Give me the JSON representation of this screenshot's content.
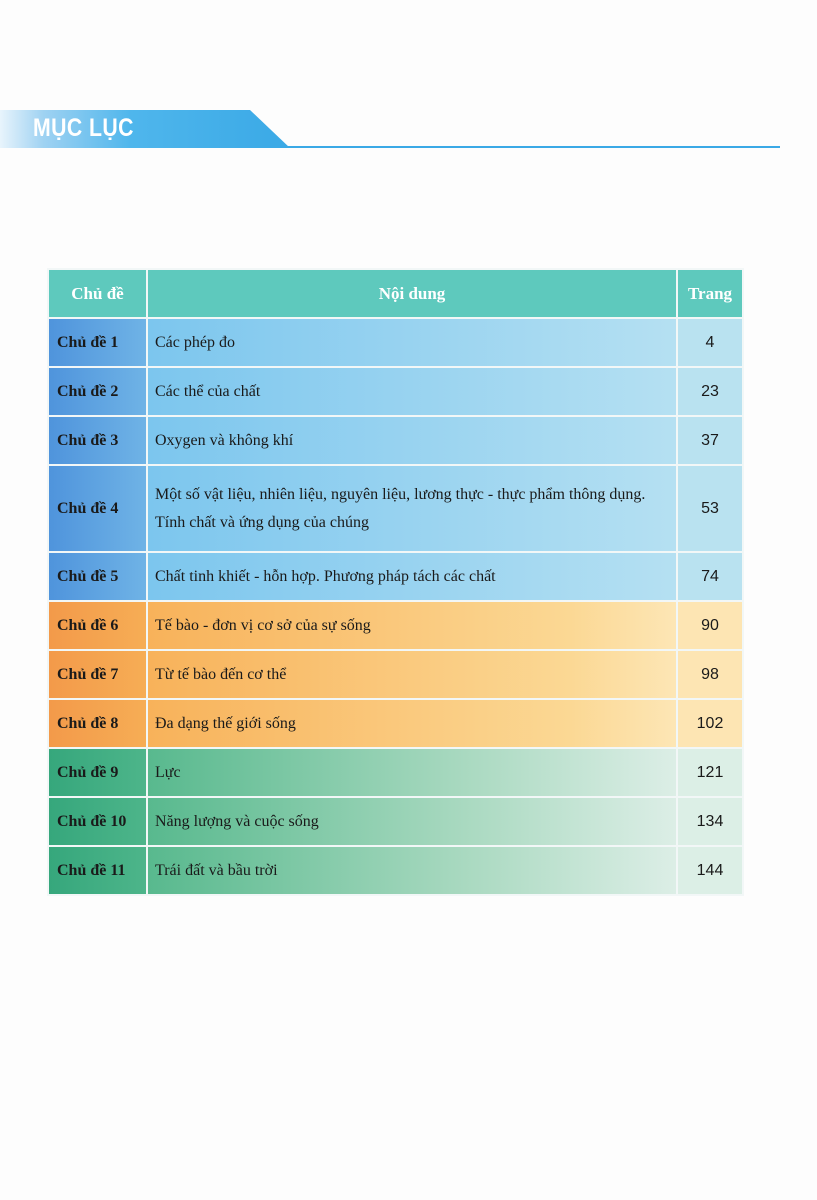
{
  "title": "MỤC LỤC",
  "headers": {
    "topic": "Chủ đề",
    "content": "Nội dung",
    "page": "Trang"
  },
  "colors": {
    "header": "#5ec9bd",
    "blue": "#4f94dc",
    "orange": "#f39a4a",
    "green": "#36a77c",
    "banner": "#3aa9e6"
  },
  "rows": [
    {
      "topic": "Chủ đề 1",
      "content": "Các phép đo",
      "page": "4",
      "group": "blue"
    },
    {
      "topic": "Chủ đề 2",
      "content": "Các thể của chất",
      "page": "23",
      "group": "blue"
    },
    {
      "topic": "Chủ đề 3",
      "content": "Oxygen và không khí",
      "page": "37",
      "group": "blue"
    },
    {
      "topic": "Chủ đề 4",
      "content": "Một số vật liệu, nhiên liệu, nguyên liệu, lương thực - thực phẩm thông dụng.",
      "content2": "Tính chất và ứng dụng của chúng",
      "page": "53",
      "group": "blue"
    },
    {
      "topic": "Chủ đề 5",
      "content": "Chất tinh khiết - hỗn hợp. Phương pháp tách các chất",
      "page": "74",
      "group": "blue"
    },
    {
      "topic": "Chủ đề 6",
      "content": "Tế bào - đơn vị cơ sở của sự sống",
      "page": "90",
      "group": "orange"
    },
    {
      "topic": "Chủ đề 7",
      "content": "Từ tế bào đến cơ thể",
      "page": "98",
      "group": "orange"
    },
    {
      "topic": "Chủ đề 8",
      "content": "Đa dạng thế giới sống",
      "page": "102",
      "group": "orange"
    },
    {
      "topic": "Chủ đề 9",
      "content": "Lực",
      "page": "121",
      "group": "green"
    },
    {
      "topic": "Chủ đề 10",
      "content": "Năng lượng và cuộc sống",
      "page": "134",
      "group": "green"
    },
    {
      "topic": "Chủ đề 11",
      "content": "Trái đất và bầu trời",
      "page": "144",
      "group": "green"
    }
  ]
}
